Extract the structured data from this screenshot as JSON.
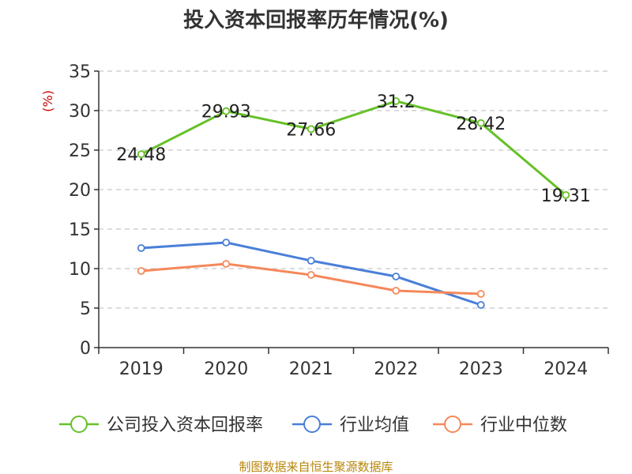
{
  "chart_data": {
    "type": "line",
    "title": "投入资本回报率历年情况(%)",
    "ylabel": "(%)",
    "xlabel": "",
    "ylim": [
      0,
      35
    ],
    "yticks": [
      0,
      5,
      10,
      15,
      20,
      25,
      30,
      35
    ],
    "categories": [
      "2019",
      "2020",
      "2021",
      "2022",
      "2023",
      "2024"
    ],
    "grid": true,
    "legend_position": "bottom",
    "series": [
      {
        "name": "公司投入资本回报率",
        "color": "#66c128",
        "values": [
          24.48,
          29.93,
          27.66,
          31.2,
          28.42,
          19.31
        ],
        "labels": [
          "24.48",
          "29.93",
          "27.66",
          "31.2",
          "28.42",
          "19.31"
        ],
        "show_labels": true
      },
      {
        "name": "行业均值",
        "color": "#4a7fd8",
        "values": [
          12.6,
          13.3,
          11.0,
          9.0,
          5.4,
          null
        ],
        "show_labels": false
      },
      {
        "name": "行业中位数",
        "color": "#f5885a",
        "values": [
          9.7,
          10.6,
          9.2,
          7.2,
          6.8,
          null
        ],
        "show_labels": false
      }
    ],
    "source": "制图数据来自恒生聚源数据库"
  }
}
